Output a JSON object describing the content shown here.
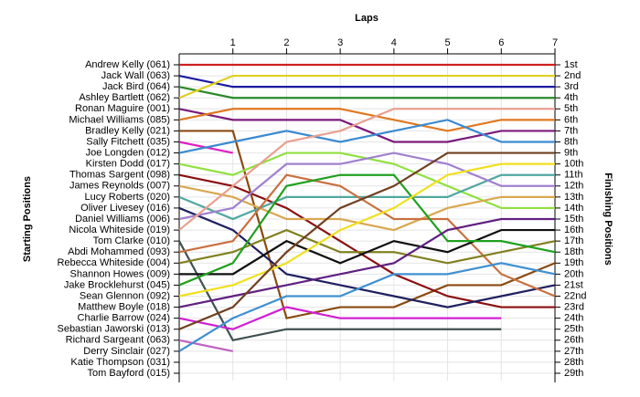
{
  "chart_data": {
    "type": "line",
    "title": "Laps",
    "y_label": "Starting Positions",
    "y2_label": "Finishing Positions",
    "x": [
      0,
      1,
      2,
      3,
      4,
      5,
      6,
      7
    ],
    "xlim": [
      0,
      7
    ],
    "xticks": [
      1,
      2,
      3,
      4,
      5,
      6,
      7
    ],
    "ylim": [
      1,
      29
    ],
    "y_inverted": true,
    "grid": true,
    "y2lim": [
      1,
      29
    ],
    "y2ticks": [
      {
        "value": 1,
        "label": "1st"
      },
      {
        "value": 2,
        "label": "2nd"
      },
      {
        "value": 3,
        "label": "3rd"
      },
      {
        "value": 4,
        "label": "4th"
      },
      {
        "value": 5,
        "label": "5th"
      },
      {
        "value": 6,
        "label": "6th"
      },
      {
        "value": 7,
        "label": "7th"
      },
      {
        "value": 8,
        "label": "8th"
      },
      {
        "value": 9,
        "label": "9th"
      },
      {
        "value": 10,
        "label": "10th"
      },
      {
        "value": 11,
        "label": "11th"
      },
      {
        "value": 12,
        "label": "12th"
      },
      {
        "value": 13,
        "label": "13th"
      },
      {
        "value": 14,
        "label": "14th"
      },
      {
        "value": 15,
        "label": "15th"
      },
      {
        "value": 16,
        "label": "16th"
      },
      {
        "value": 17,
        "label": "17th"
      },
      {
        "value": 18,
        "label": "18th"
      },
      {
        "value": 19,
        "label": "19th"
      },
      {
        "value": 20,
        "label": "20th"
      },
      {
        "value": 21,
        "label": "21st"
      },
      {
        "value": 22,
        "label": "22nd"
      },
      {
        "value": 23,
        "label": "23rd"
      },
      {
        "value": 24,
        "label": "24th"
      },
      {
        "value": 25,
        "label": "25th"
      },
      {
        "value": 26,
        "label": "26th"
      },
      {
        "value": 27,
        "label": "27th"
      },
      {
        "value": 28,
        "label": "28th"
      },
      {
        "value": 29,
        "label": "29th"
      }
    ],
    "series": [
      {
        "name": "Andrew Kelly (061)",
        "color": "#d02020",
        "values": [
          1,
          1,
          1,
          1,
          1,
          1,
          1,
          1
        ]
      },
      {
        "name": "Jack Wall (063)",
        "color": "#1a1aa0",
        "values": [
          2,
          3,
          3,
          3,
          3,
          3,
          3,
          3
        ]
      },
      {
        "name": "Jack Bird (064)",
        "color": "#2a8a2a",
        "values": [
          3,
          4,
          4,
          4,
          4,
          4,
          4,
          4
        ]
      },
      {
        "name": "Ashley Bartlett (062)",
        "color": "#e0d020",
        "values": [
          4,
          2,
          2,
          2,
          2,
          2,
          2,
          2
        ]
      },
      {
        "name": "Ronan Maguire (001)",
        "color": "#7a1a7a",
        "values": [
          5,
          6,
          6,
          6,
          8,
          8,
          7,
          7
        ]
      },
      {
        "name": "Michael Williams (085)",
        "color": "#e07820",
        "values": [
          6,
          5,
          5,
          5,
          6,
          7,
          6,
          6
        ]
      },
      {
        "name": "Bradley Kelly (021)",
        "color": "#8a4a10",
        "values": [
          7,
          7,
          24,
          23,
          23,
          21,
          21,
          19
        ]
      },
      {
        "name": "Sally Fitchett (035)",
        "color": "#e020c0",
        "values": [
          8,
          9,
          null,
          null,
          null,
          null,
          null,
          null
        ]
      },
      {
        "name": "Joe Longden (012)",
        "color": "#3a8ad0",
        "values": [
          9,
          8,
          7,
          8,
          7,
          6,
          8,
          8
        ]
      },
      {
        "name": "Kirsten Dodd (017)",
        "color": "#90e040",
        "values": [
          10,
          11,
          9,
          9,
          10,
          12,
          14,
          14
        ]
      },
      {
        "name": "Thomas Sargent (098)",
        "color": "#8a1010",
        "values": [
          11,
          12,
          14,
          17,
          20,
          22,
          23,
          23
        ]
      },
      {
        "name": "James Reynolds (007)",
        "color": "#d8a850",
        "values": [
          12,
          13,
          15,
          15,
          16,
          14,
          13,
          13
        ]
      },
      {
        "name": "Lucy Roberts (020)",
        "color": "#50a8a0",
        "values": [
          13,
          15,
          13,
          13,
          13,
          13,
          11,
          11
        ]
      },
      {
        "name": "Oliver Livesey (016)",
        "color": "#202060",
        "values": [
          14,
          16,
          20,
          21,
          22,
          23,
          22,
          21
        ]
      },
      {
        "name": "Daniel Williams (006)",
        "color": "#a080d0",
        "values": [
          15,
          14,
          10,
          10,
          9,
          10,
          12,
          12
        ]
      },
      {
        "name": "Nicola Whiteside (019)",
        "color": "#e8a090",
        "values": [
          16,
          12,
          8,
          7,
          5,
          5,
          5,
          5
        ]
      },
      {
        "name": "Tom Clarke (010)",
        "color": "#405050",
        "values": [
          17,
          26,
          25,
          25,
          25,
          25,
          25,
          null
        ]
      },
      {
        "name": "Abdi Mohammed (093)",
        "color": "#c87040",
        "values": [
          18,
          17,
          11,
          12,
          15,
          15,
          20,
          22
        ]
      },
      {
        "name": "Rebecca Whiteside (004)",
        "color": "#808020",
        "values": [
          19,
          18,
          16,
          18,
          18,
          19,
          18,
          17
        ]
      },
      {
        "name": "Shannon Howes (009)",
        "color": "#101010",
        "values": [
          20,
          20,
          17,
          19,
          17,
          18,
          16,
          16
        ]
      },
      {
        "name": "Jake Brocklehurst (045)",
        "color": "#20a020",
        "values": [
          21,
          19,
          12,
          11,
          11,
          17,
          17,
          18
        ]
      },
      {
        "name": "Sean Glennon (092)",
        "color": "#f0e020",
        "values": [
          22,
          21,
          19,
          16,
          14,
          11,
          10,
          10
        ]
      },
      {
        "name": "Matthew Boyle (018)",
        "color": "#602080",
        "values": [
          23,
          22,
          21,
          20,
          19,
          16,
          15,
          15
        ]
      },
      {
        "name": "Charlie Barrow (024)",
        "color": "#d020d0",
        "values": [
          24,
          25,
          23,
          24,
          24,
          24,
          24,
          null
        ]
      },
      {
        "name": "Sebastian Jaworski (013)",
        "color": "#704020",
        "values": [
          25,
          23,
          18,
          14,
          12,
          9,
          9,
          9
        ]
      },
      {
        "name": "Richard Sargeant (063)",
        "color": "#c060c0",
        "values": [
          26,
          27,
          null,
          null,
          null,
          null,
          null,
          null
        ]
      },
      {
        "name": "Derry Sinclair (027)",
        "color": "#4090d0",
        "values": [
          27,
          24,
          22,
          22,
          20,
          20,
          19,
          20
        ]
      },
      {
        "name": "Katie Thompson (031)",
        "color": "#808080",
        "values": [
          28,
          null,
          null,
          null,
          null,
          null,
          null,
          null
        ]
      },
      {
        "name": "Tom Bayford (015)",
        "color": "#808080",
        "values": [
          29,
          null,
          null,
          null,
          null,
          null,
          null,
          null
        ]
      }
    ]
  }
}
